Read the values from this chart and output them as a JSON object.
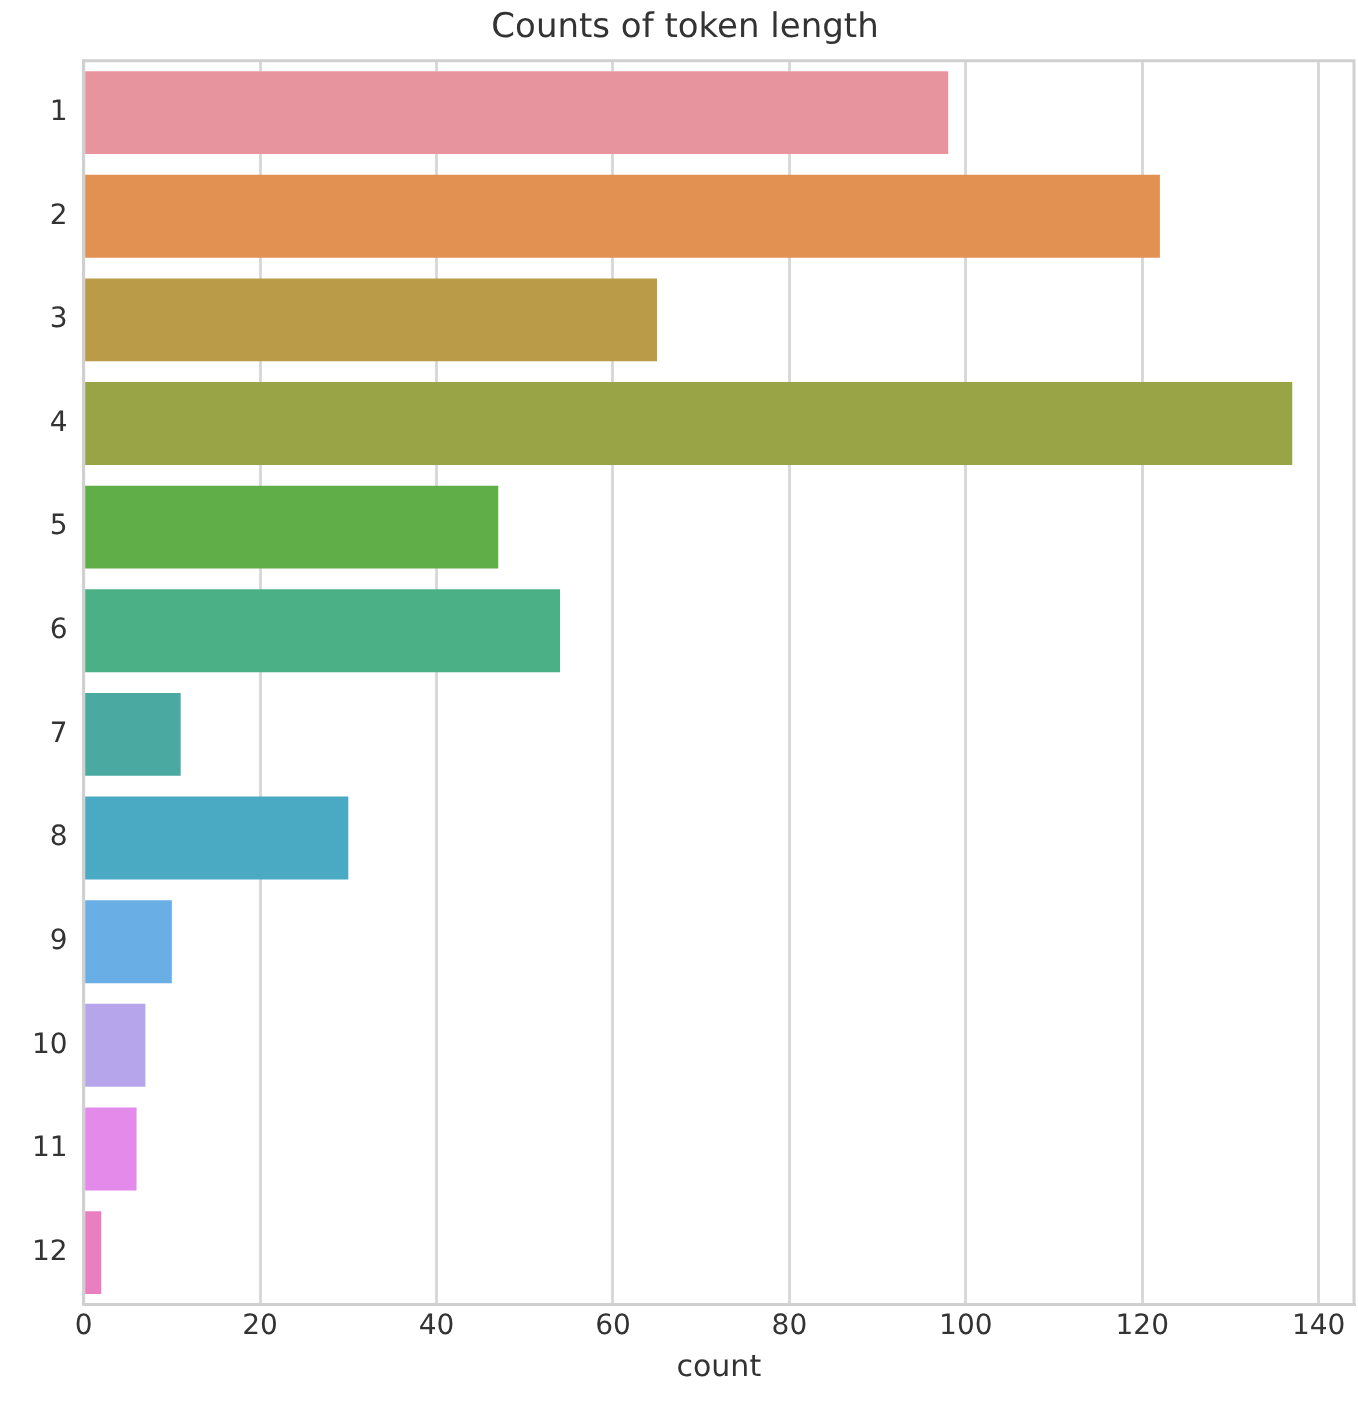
{
  "chart_data": {
    "type": "bar",
    "orientation": "horizontal",
    "title": "Counts of token length",
    "xlabel": "count",
    "categories": [
      "1",
      "2",
      "3",
      "4",
      "5",
      "6",
      "7",
      "8",
      "9",
      "10",
      "11",
      "12"
    ],
    "values": [
      98,
      122,
      65,
      137,
      47,
      54,
      11,
      30,
      10,
      7,
      6,
      2
    ],
    "colors": [
      "#e8949f",
      "#e39152",
      "#b99b48",
      "#98a445",
      "#60ae47",
      "#4bb086",
      "#4aa9a0",
      "#4aa9c3",
      "#6aaee6",
      "#b6a5ea",
      "#e38aea",
      "#e97fc0"
    ],
    "xlim": [
      0,
      144
    ],
    "xticks": [
      0,
      20,
      40,
      60,
      80,
      100,
      120,
      140
    ],
    "grid": "x",
    "legend": false
  }
}
